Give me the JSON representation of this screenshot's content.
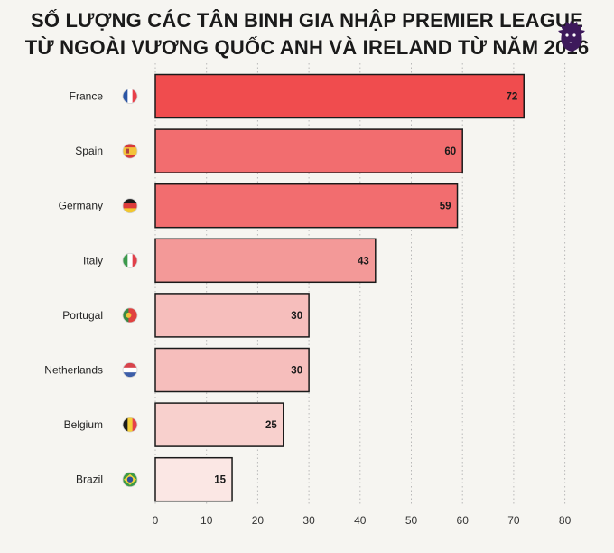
{
  "title_line1": "SỐ LƯỢNG CÁC TÂN BINH GIA NHẬP PREMIER LEAGUE",
  "title_line2": "TỪ NGOÀI VƯƠNG QUỐC ANH VÀ IRELAND TỪ NĂM 2016",
  "logo_icon": "premier-league-lion-icon",
  "colors": {
    "background": "#f6f5f1",
    "bar_stroke": "#1a1a1a",
    "grid": "#b9b9b9",
    "logo": "#3d195b"
  },
  "chart_data": {
    "type": "bar",
    "orientation": "horizontal",
    "categories": [
      "France",
      "Spain",
      "Germany",
      "Italy",
      "Portugal",
      "Netherlands",
      "Belgium",
      "Brazil"
    ],
    "values": [
      72,
      60,
      59,
      43,
      30,
      30,
      25,
      15
    ],
    "flag_icons": [
      "flag-france-icon",
      "flag-spain-icon",
      "flag-germany-icon",
      "flag-italy-icon",
      "flag-portugal-icon",
      "flag-netherlands-icon",
      "flag-belgium-icon",
      "flag-brazil-icon"
    ],
    "bar_colors": [
      "#f04c4e",
      "#f26d6f",
      "#f26d6f",
      "#f39998",
      "#f6bebc",
      "#f6bebc",
      "#f8d0cd",
      "#fbe7e4"
    ],
    "xlim": [
      0,
      80
    ],
    "xticks": [
      0,
      10,
      20,
      30,
      40,
      50,
      60,
      70,
      80
    ],
    "xlabel": "",
    "ylabel": "",
    "grid": true,
    "data_labels": true
  }
}
